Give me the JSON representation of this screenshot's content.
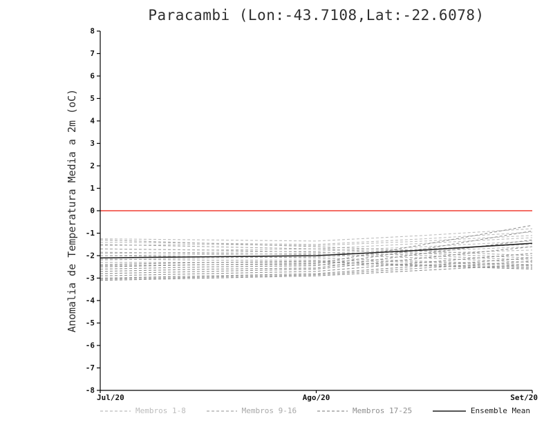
{
  "page": {
    "background": "#ffffff"
  },
  "chart_data": {
    "type": "line",
    "title": "Paracambi (Lon:-43.7108,Lat:-22.6078)",
    "ylabel": "Anomalia de Temperatura Media a 2m (oC)",
    "ylim": [
      -8,
      8
    ],
    "xlim": [
      0,
      2
    ],
    "grid": false,
    "axis_color": "#000000",
    "ytick_values": [
      8,
      7,
      6,
      5,
      4,
      3,
      2,
      1,
      0,
      -1,
      -2,
      -3,
      -4,
      -5,
      -6,
      -7,
      -8
    ],
    "ytick_labels": [
      "8",
      "7",
      "6",
      "5",
      "4",
      "3",
      "2",
      "1",
      "0",
      "-1",
      "-2",
      "-3",
      "-4",
      "-5",
      "-6",
      "-7",
      "-8"
    ],
    "xtick_positions": [
      0,
      1,
      2
    ],
    "xtick_labels": [
      "Jul/20",
      "Ago/20",
      "Set/20"
    ],
    "zero_line": {
      "value": 0,
      "color": "#f03b30"
    },
    "x": [
      0,
      0.5,
      1,
      1.5,
      2
    ],
    "groups": [
      {
        "name": "Membros 1-8",
        "color": "#bcbcbc",
        "dash": "4 3",
        "series": [
          [
            -1.25,
            -1.3,
            -1.35,
            -1.1,
            -0.8
          ],
          [
            -1.4,
            -1.45,
            -1.5,
            -1.25,
            -0.95
          ],
          [
            -1.55,
            -1.5,
            -1.55,
            -1.35,
            -1.1
          ],
          [
            -1.7,
            -1.75,
            -1.7,
            -1.45,
            -1.2
          ],
          [
            -1.9,
            -1.85,
            -1.8,
            -1.6,
            -1.35
          ],
          [
            -2.0,
            -1.95,
            -1.9,
            -1.7,
            -1.5
          ],
          [
            -2.1,
            -2.05,
            -2.0,
            -1.8,
            -1.6
          ],
          [
            -2.2,
            -2.1,
            -2.05,
            -1.9,
            -1.75
          ]
        ]
      },
      {
        "name": "Membros 9-16",
        "color": "#a8a8a8",
        "dash": "4 3",
        "series": [
          [
            -1.3,
            -1.45,
            -1.6,
            -1.8,
            -2.0
          ],
          [
            -1.5,
            -1.6,
            -1.7,
            -1.9,
            -2.1
          ],
          [
            -1.7,
            -1.75,
            -1.85,
            -2.0,
            -2.2
          ],
          [
            -1.85,
            -1.9,
            -1.95,
            -2.1,
            -2.3
          ],
          [
            -2.0,
            -2.05,
            -2.1,
            -2.25,
            -2.4
          ],
          [
            -2.15,
            -2.2,
            -2.2,
            -2.3,
            -2.45
          ],
          [
            -2.3,
            -2.3,
            -2.3,
            -2.4,
            -2.5
          ],
          [
            -2.45,
            -2.4,
            -2.4,
            -2.45,
            -2.55
          ]
        ]
      },
      {
        "name": "Membros 17-25",
        "color": "#8f8f8f",
        "dash": "4 3",
        "series": [
          [
            -2.5,
            -2.4,
            -2.35,
            -1.5,
            -0.65
          ],
          [
            -2.6,
            -2.5,
            -2.45,
            -1.7,
            -0.9
          ],
          [
            -2.7,
            -2.6,
            -2.55,
            -1.9,
            -1.3
          ],
          [
            -2.8,
            -2.7,
            -2.6,
            -2.1,
            -1.6
          ],
          [
            -2.9,
            -2.8,
            -2.7,
            -2.3,
            -1.9
          ],
          [
            -3.0,
            -2.9,
            -2.8,
            -2.45,
            -2.1
          ],
          [
            -3.05,
            -2.95,
            -2.85,
            -2.55,
            -2.25
          ],
          [
            -3.1,
            -3.0,
            -2.9,
            -2.65,
            -2.4
          ],
          [
            -2.4,
            -2.3,
            -2.25,
            -2.45,
            -2.6
          ]
        ]
      }
    ],
    "ensemble_mean": {
      "name": "Ensemble Mean",
      "color": "#1c1c1c",
      "values": [
        -2.1,
        -2.05,
        -2.0,
        -1.75,
        -1.45
      ]
    }
  }
}
